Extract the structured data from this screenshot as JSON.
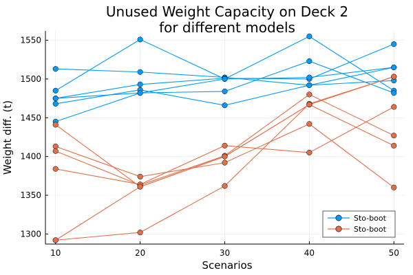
{
  "chart_data": {
    "type": "line",
    "title": "Unused Weight Capacity on Deck 2",
    "subtitle": "for different models",
    "xlabel": "Scenarios",
    "ylabel": "Weight diff. (t)",
    "xlim": [
      8.8,
      51.2
    ],
    "ylim": [
      1287,
      1562
    ],
    "x_ticks": [
      10,
      20,
      30,
      40,
      50
    ],
    "y_ticks": [
      1300,
      1350,
      1400,
      1450,
      1500,
      1550
    ],
    "grid": true,
    "legend_position": "bottom-right",
    "legend": [
      {
        "name": "Sto-boot",
        "color": "#009AFA"
      },
      {
        "name": "Sto-boot",
        "color": "#E36F47"
      }
    ],
    "x": [
      10,
      20,
      30,
      40,
      50
    ],
    "groups": [
      {
        "color": "#009AFA",
        "lines": [
          [
            1513,
            1509,
            1502,
            1492,
            1498
          ],
          [
            1485,
            1551,
            1500,
            1555,
            1485
          ],
          [
            1475,
            1493,
            1501,
            1500,
            1545
          ],
          [
            1468,
            1486,
            1466,
            1492,
            1515
          ],
          [
            1445,
            1482,
            1484,
            1523,
            1482
          ],
          [
            1475,
            1482,
            1500,
            1502,
            1515
          ]
        ]
      },
      {
        "color": "#E36F47",
        "lines": [
          [
            1441,
            1361,
            1400,
            1467,
            1414
          ],
          [
            1413,
            1374,
            1392,
            1442,
            1360
          ],
          [
            1407,
            1363,
            1401,
            1480,
            1427
          ],
          [
            1384,
            1364,
            1414,
            1405,
            1464
          ],
          [
            1292,
            1302,
            1362,
            1468,
            1503
          ],
          [
            1292,
            1361,
            1400,
            1467,
            1503
          ]
        ]
      }
    ]
  }
}
